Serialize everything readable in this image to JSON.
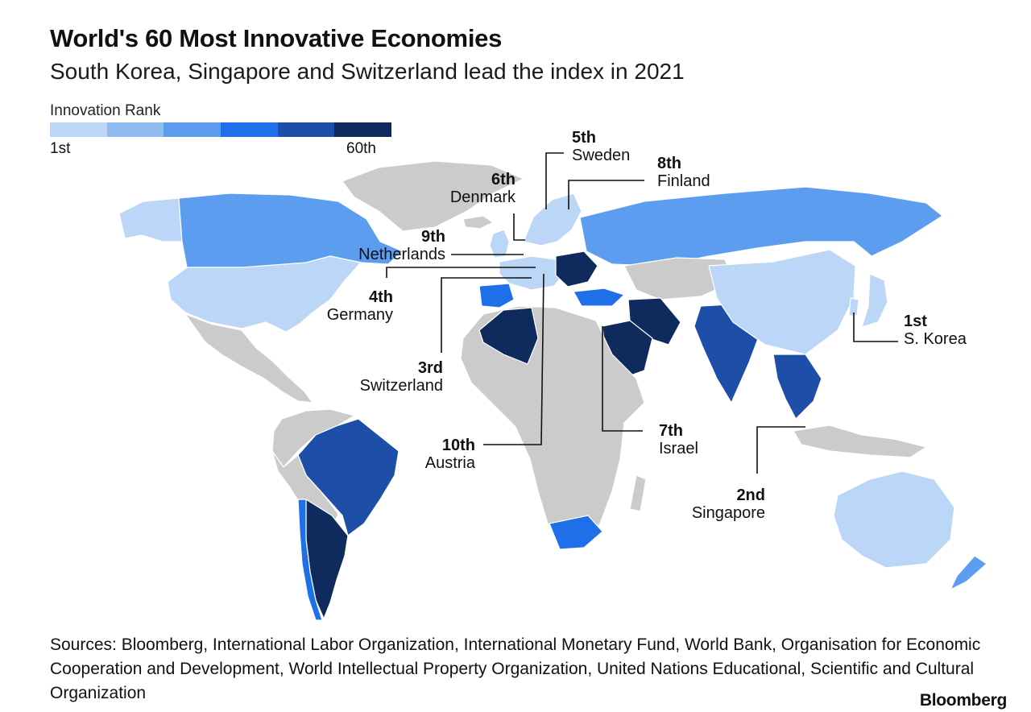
{
  "header": {
    "title": "World's 60 Most Innovative Economies",
    "subtitle": "South Korea, Singapore and Switzerland lead the index in 2021"
  },
  "legend": {
    "title": "Innovation Rank",
    "min_label": "1st",
    "max_label": "60th",
    "colors": [
      "#bcd6f7",
      "#8fbcf0",
      "#5d9df0",
      "#1f6fe8",
      "#1d4fa8",
      "#0f2a5c"
    ]
  },
  "map_colors": {
    "no_data": "#cbcbcb",
    "water": "#ffffff"
  },
  "callouts": {
    "korea": {
      "rank": "1st",
      "name": "S. Korea"
    },
    "singapore": {
      "rank": "2nd",
      "name": "Singapore"
    },
    "switzerland": {
      "rank": "3rd",
      "name": "Switzerland"
    },
    "germany": {
      "rank": "4th",
      "name": "Germany"
    },
    "sweden": {
      "rank": "5th",
      "name": "Sweden"
    },
    "denmark": {
      "rank": "6th",
      "name": "Denmark"
    },
    "israel": {
      "rank": "7th",
      "name": "Israel"
    },
    "finland": {
      "rank": "8th",
      "name": "Finland"
    },
    "netherlands": {
      "rank": "9th",
      "name": "Netherlands"
    },
    "austria": {
      "rank": "10th",
      "name": "Austria"
    }
  },
  "footer": {
    "sources": "Sources: Bloomberg, International Labor Organization, International Monetary Fund, World Bank, Organisation for Economic Cooperation and Development, World Intellectual Property Organization, United Nations Educational, Scientific and Cultural Organization",
    "brand": "Bloomberg"
  }
}
